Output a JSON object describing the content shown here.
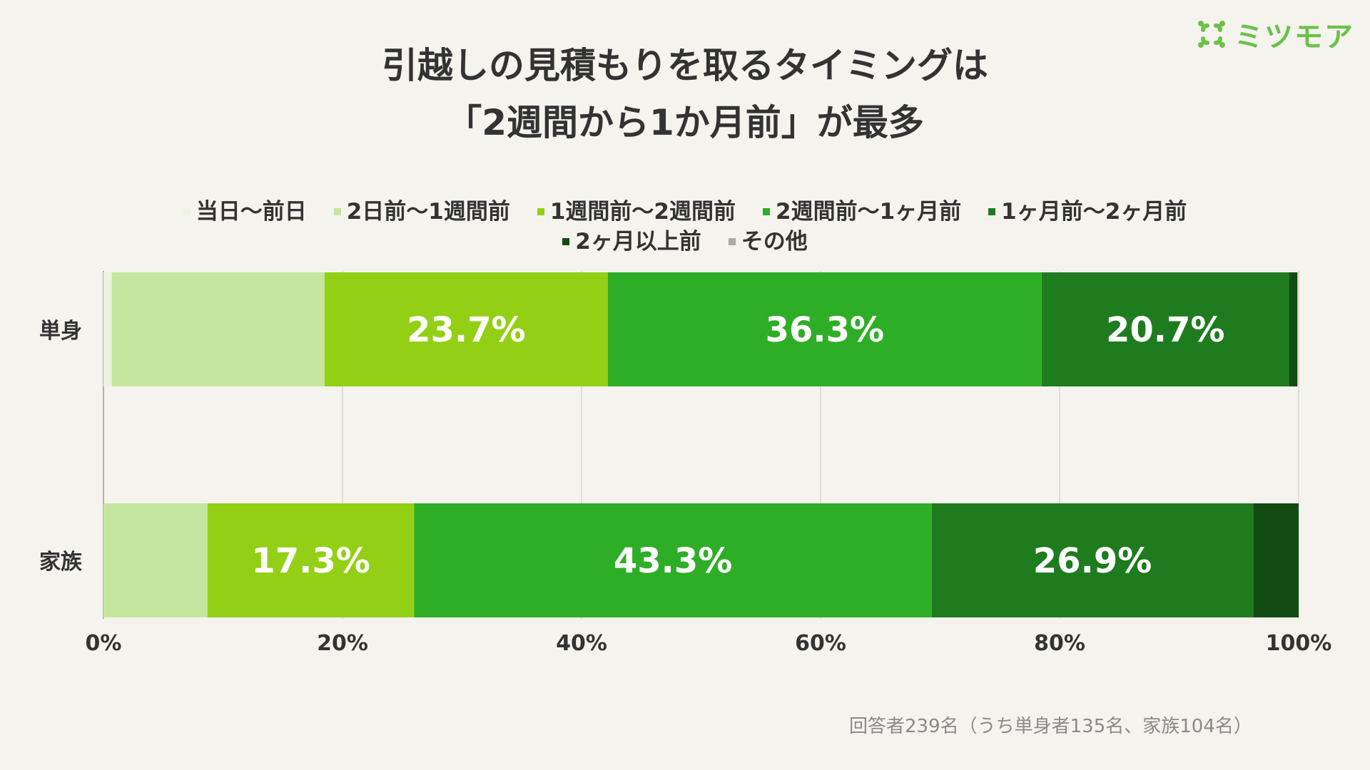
{
  "title": {
    "line1": "引越しの見積もりを取るタイミングは",
    "line2": "「2週間から1か月前」が最多"
  },
  "logo": {
    "text": "ミツモア",
    "icon": "mitsumore-logo-icon",
    "color": "#6cc04a"
  },
  "footnote": "回答者239名（うち単身者135名、家族104名）",
  "chart_data": {
    "type": "bar",
    "orientation": "horizontal",
    "stacked": true,
    "categories": [
      "単身",
      "家族"
    ],
    "series": [
      {
        "name": "当日〜前日",
        "color": "#eef2e2",
        "values": [
          0.7,
          0.0
        ]
      },
      {
        "name": "2日前〜1週間前",
        "color": "#c5e69f",
        "values": [
          17.8,
          8.7
        ]
      },
      {
        "name": "1週間前〜2週間前",
        "color": "#93d015",
        "values": [
          23.7,
          17.3
        ]
      },
      {
        "name": "2週間前〜1ヶ月前",
        "color": "#2eae27",
        "values": [
          36.3,
          43.3
        ]
      },
      {
        "name": "1ヶ月前〜2ヶ月前",
        "color": "#1e7c1e",
        "values": [
          20.7,
          26.9
        ]
      },
      {
        "name": "2ヶ月以上前",
        "color": "#124c14",
        "values": [
          0.7,
          3.8
        ]
      },
      {
        "name": "その他",
        "color": "#aaaaaa",
        "values": [
          0.0,
          0.0
        ]
      }
    ],
    "data_labels": [
      {
        "category": "単身",
        "series": "1週間前〜2週間前",
        "text": "23.7%"
      },
      {
        "category": "単身",
        "series": "2週間前〜1ヶ月前",
        "text": "36.3%"
      },
      {
        "category": "単身",
        "series": "1ヶ月前〜2ヶ月前",
        "text": "20.7%"
      },
      {
        "category": "家族",
        "series": "1週間前〜2週間前",
        "text": "17.3%"
      },
      {
        "category": "家族",
        "series": "2週間前〜1ヶ月前",
        "text": "43.3%"
      },
      {
        "category": "家族",
        "series": "1ヶ月前〜2ヶ月前",
        "text": "26.9%"
      }
    ],
    "x_ticks": [
      "0%",
      "20%",
      "40%",
      "60%",
      "80%",
      "100%"
    ],
    "xlim": [
      0,
      100
    ],
    "grid": true,
    "legend_position": "top"
  }
}
